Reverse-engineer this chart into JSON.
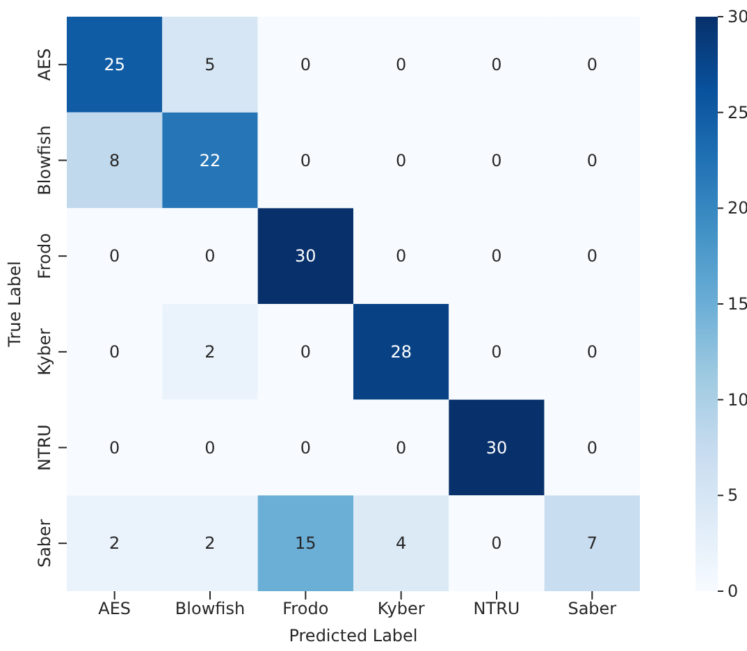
{
  "chart_data": {
    "type": "heatmap",
    "xlabel": "Predicted Label",
    "ylabel": "True Label",
    "clim": [
      0,
      30
    ],
    "cticks": [
      0,
      5,
      10,
      15,
      20,
      25,
      30
    ],
    "data_labels": true,
    "categories": [
      "AES",
      "Blowfish",
      "Frodo",
      "Kyber",
      "NTRU",
      "Saber"
    ],
    "y_categories": [
      "AES",
      "Blowfish",
      "Frodo",
      "Kyber",
      "NTRU",
      "Saber"
    ],
    "cells": [
      [
        25,
        5,
        0,
        0,
        0,
        0
      ],
      [
        8,
        22,
        0,
        0,
        0,
        0
      ],
      [
        0,
        0,
        30,
        0,
        0,
        0
      ],
      [
        0,
        2,
        0,
        28,
        0,
        0
      ],
      [
        0,
        0,
        0,
        0,
        30,
        0
      ],
      [
        2,
        2,
        15,
        4,
        0,
        7
      ]
    ]
  }
}
